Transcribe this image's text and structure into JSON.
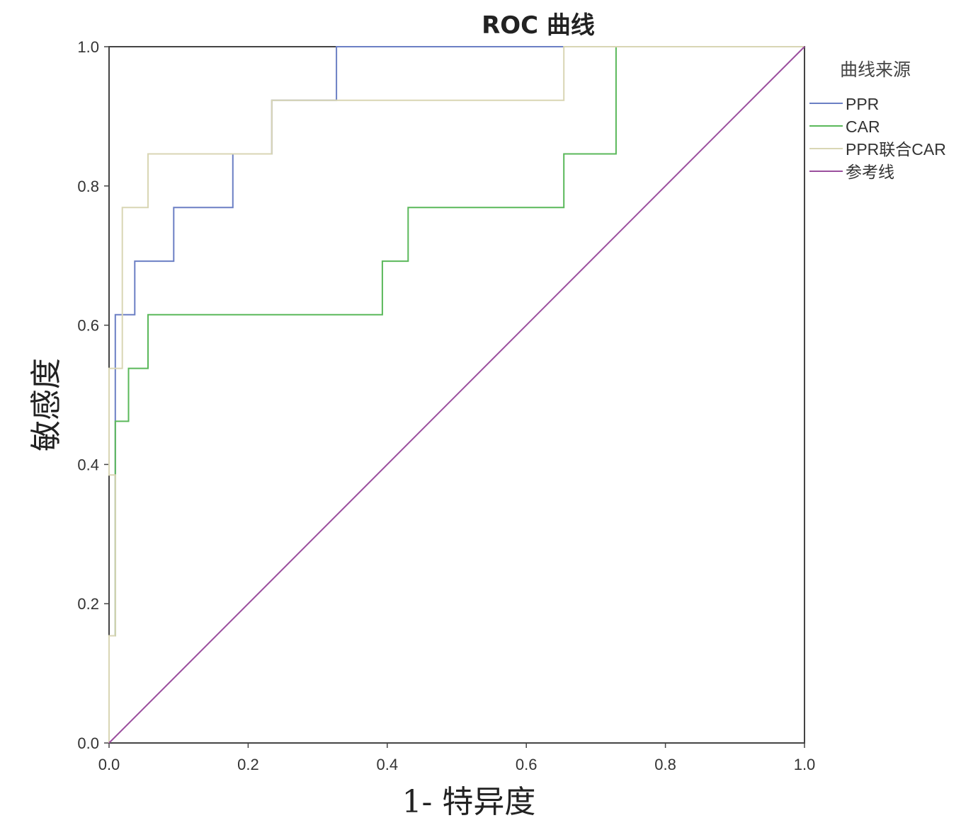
{
  "chart_data": {
    "type": "line",
    "title": "ROC 曲线",
    "xlabel": "1- 特异度",
    "ylabel": "敏感度",
    "xlim": [
      0,
      1
    ],
    "ylim": [
      0,
      1
    ],
    "xticks": [
      "0.0",
      "0.2",
      "0.4",
      "0.6",
      "0.8",
      "1.0"
    ],
    "yticks": [
      "0.0",
      "0.2",
      "0.4",
      "0.6",
      "0.8",
      "1.0"
    ],
    "grid": false,
    "legend": {
      "title": "曲线来源",
      "placement": "right"
    },
    "series": [
      {
        "name": "PPR",
        "color": "#6b7fc4",
        "points": [
          [
            0,
            0
          ],
          [
            0,
            0.154
          ],
          [
            0.009,
            0.154
          ],
          [
            0.009,
            0.385
          ],
          [
            0.009,
            0.462
          ],
          [
            0.009,
            0.615
          ],
          [
            0.037,
            0.615
          ],
          [
            0.037,
            0.692
          ],
          [
            0.093,
            0.692
          ],
          [
            0.093,
            0.769
          ],
          [
            0.178,
            0.769
          ],
          [
            0.178,
            0.846
          ],
          [
            0.234,
            0.846
          ],
          [
            0.234,
            0.923
          ],
          [
            0.327,
            0.923
          ],
          [
            0.327,
            1.0
          ],
          [
            1.0,
            1.0
          ]
        ]
      },
      {
        "name": "CAR",
        "color": "#5ab85a",
        "points": [
          [
            0,
            0
          ],
          [
            0,
            0.154
          ],
          [
            0.009,
            0.154
          ],
          [
            0.009,
            0.385
          ],
          [
            0.009,
            0.462
          ],
          [
            0.028,
            0.462
          ],
          [
            0.028,
            0.538
          ],
          [
            0.056,
            0.538
          ],
          [
            0.056,
            0.615
          ],
          [
            0.393,
            0.615
          ],
          [
            0.393,
            0.692
          ],
          [
            0.43,
            0.692
          ],
          [
            0.43,
            0.769
          ],
          [
            0.654,
            0.769
          ],
          [
            0.654,
            0.846
          ],
          [
            0.729,
            0.846
          ],
          [
            0.729,
            1.0
          ],
          [
            1.0,
            1.0
          ]
        ]
      },
      {
        "name": "PPR联合CAR",
        "color": "#d9d6b4",
        "points": [
          [
            0,
            0
          ],
          [
            0,
            0.154
          ],
          [
            0.009,
            0.154
          ],
          [
            0.009,
            0.385
          ],
          [
            0,
            0.385
          ],
          [
            0,
            0.538
          ],
          [
            0.019,
            0.538
          ],
          [
            0.019,
            0.769
          ],
          [
            0.056,
            0.769
          ],
          [
            0.056,
            0.846
          ],
          [
            0.234,
            0.846
          ],
          [
            0.234,
            0.923
          ],
          [
            0.654,
            0.923
          ],
          [
            0.654,
            1.0
          ],
          [
            1.0,
            1.0
          ]
        ]
      },
      {
        "name": "参考线",
        "color": "#9b4f9e",
        "points": [
          [
            0,
            0
          ],
          [
            1,
            1
          ]
        ]
      }
    ]
  }
}
